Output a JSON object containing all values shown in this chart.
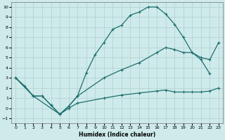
{
  "xlabel": "Humidex (Indice chaleur)",
  "xlim": [
    -0.5,
    23.5
  ],
  "ylim": [
    -1.5,
    10.5
  ],
  "xticks": [
    0,
    1,
    2,
    3,
    4,
    5,
    6,
    7,
    8,
    9,
    10,
    11,
    12,
    13,
    14,
    15,
    16,
    17,
    18,
    19,
    20,
    21,
    22,
    23
  ],
  "yticks": [
    -1,
    0,
    1,
    2,
    3,
    4,
    5,
    6,
    7,
    8,
    9,
    10
  ],
  "background_color": "#ceeaea",
  "grid_color": "#b0d0d0",
  "line_color": "#1e6e6e",
  "curve_top_x": [
    0,
    1,
    2,
    3,
    4,
    5,
    6,
    7,
    8,
    9,
    10,
    11,
    12,
    13,
    14,
    15,
    16,
    17,
    18,
    19,
    20,
    21,
    22
  ],
  "curve_top_y": [
    3.0,
    2.2,
    1.2,
    1.2,
    0.3,
    -0.6,
    0.2,
    1.2,
    3.5,
    5.3,
    6.5,
    7.8,
    8.2,
    9.2,
    9.5,
    10.0,
    10.0,
    9.3,
    8.3,
    7.0,
    5.5,
    4.8,
    3.4
  ],
  "curve_mid_x": [
    0,
    2,
    3,
    4,
    5,
    6,
    7,
    10,
    12,
    14,
    16,
    17,
    18,
    19,
    20,
    21,
    22,
    23
  ],
  "curve_mid_y": [
    3.0,
    1.2,
    1.2,
    0.3,
    -0.6,
    0.2,
    1.2,
    3.0,
    3.8,
    4.5,
    5.5,
    6.0,
    5.8,
    5.5,
    5.5,
    5.0,
    4.8,
    6.5
  ],
  "curve_bot_x": [
    0,
    2,
    5,
    6,
    7,
    10,
    12,
    14,
    16,
    17,
    18,
    19,
    20,
    21,
    22,
    23
  ],
  "curve_bot_y": [
    3.0,
    1.2,
    -0.6,
    0.0,
    0.5,
    1.0,
    1.3,
    1.5,
    1.7,
    1.8,
    1.6,
    1.6,
    1.6,
    1.6,
    1.7,
    2.0
  ]
}
